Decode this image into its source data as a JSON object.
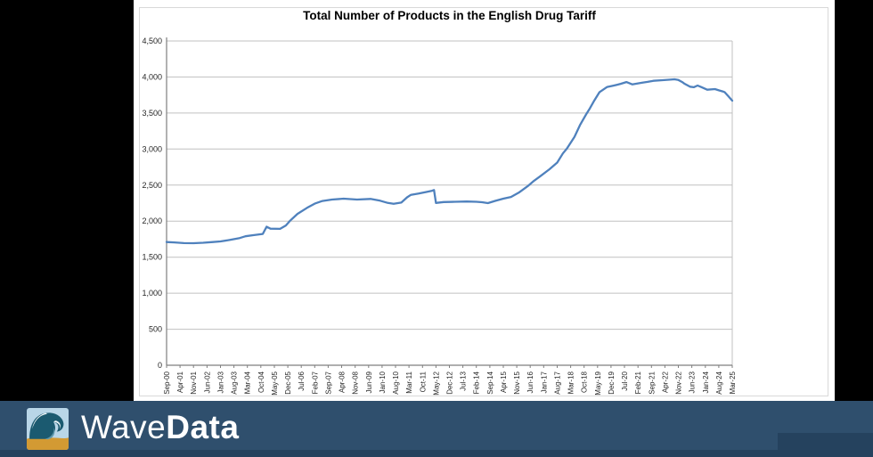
{
  "page": {
    "background": "#000000"
  },
  "chart": {
    "panel_bg": "#ffffff",
    "panel_border_color": "#d9d9d9"
  },
  "chart_data": {
    "type": "line",
    "title": "Total Number of Products in the English Drug Tariff",
    "xlabel": "",
    "ylabel": "",
    "ylim": [
      0,
      4500
    ],
    "y_tick_step": 500,
    "y_tick_labels": [
      "0",
      "500",
      "1,000",
      "1,500",
      "2,000",
      "2,500",
      "3,000",
      "3,500",
      "4,000",
      "4,500"
    ],
    "x_tick_labels": [
      "Sep-00",
      "Apr-01",
      "Nov-01",
      "Jun-02",
      "Jan-03",
      "Aug-03",
      "Mar-04",
      "Oct-04",
      "May-05",
      "Dec-05",
      "Jul-06",
      "Feb-07",
      "Sep-07",
      "Apr-08",
      "Nov-08",
      "Jun-09",
      "Jan-10",
      "Aug-10",
      "Mar-11",
      "Oct-11",
      "May-12",
      "Dec-12",
      "Jul-13",
      "Feb-14",
      "Sep-14",
      "Apr-15",
      "Nov-15",
      "Jun-16",
      "Jan-17",
      "Aug-17",
      "Mar-18",
      "Oct-18",
      "May-19",
      "Dec-19",
      "Jul-20",
      "Feb-21",
      "Sep-21",
      "Apr-22",
      "Nov-22",
      "Jun-23",
      "Jan-24",
      "Aug-24",
      "Mar-25"
    ],
    "x_months_per_tick": 7,
    "x_range": [
      "Sep-00",
      "Mar-25"
    ],
    "grid": "horizontal",
    "legend": "none",
    "line_color": "#4f81bd",
    "gridline_color": "#c0c0c0",
    "axis_color": "#7f7f7f",
    "tick_label_color": "#262626",
    "series": [
      {
        "points_x_unit": "months-since-Sep-00",
        "points": [
          [
            0,
            1710
          ],
          [
            4,
            1705
          ],
          [
            9,
            1695
          ],
          [
            14,
            1694
          ],
          [
            19,
            1700
          ],
          [
            24,
            1710
          ],
          [
            28,
            1718
          ],
          [
            33,
            1740
          ],
          [
            38,
            1766
          ],
          [
            41,
            1790
          ],
          [
            45,
            1805
          ],
          [
            50,
            1822
          ],
          [
            52,
            1922
          ],
          [
            54,
            1895
          ],
          [
            59,
            1893
          ],
          [
            62,
            1940
          ],
          [
            64,
            2000
          ],
          [
            68,
            2100
          ],
          [
            73,
            2185
          ],
          [
            77,
            2242
          ],
          [
            81,
            2280
          ],
          [
            86,
            2300
          ],
          [
            92,
            2312
          ],
          [
            99,
            2300
          ],
          [
            106,
            2308
          ],
          [
            111,
            2283
          ],
          [
            115,
            2252
          ],
          [
            118,
            2240
          ],
          [
            122,
            2258
          ],
          [
            125,
            2330
          ],
          [
            127,
            2365
          ],
          [
            131,
            2382
          ],
          [
            135,
            2405
          ],
          [
            138,
            2422
          ],
          [
            139,
            2432
          ],
          [
            140,
            2252
          ],
          [
            144,
            2265
          ],
          [
            150,
            2268
          ],
          [
            156,
            2272
          ],
          [
            161,
            2268
          ],
          [
            164,
            2262
          ],
          [
            167,
            2250
          ],
          [
            171,
            2282
          ],
          [
            175,
            2312
          ],
          [
            179,
            2335
          ],
          [
            183,
            2395
          ],
          [
            188,
            2492
          ],
          [
            191,
            2560
          ],
          [
            194,
            2618
          ],
          [
            199,
            2720
          ],
          [
            203,
            2812
          ],
          [
            206,
            2940
          ],
          [
            208,
            3005
          ],
          [
            212,
            3170
          ],
          [
            215,
            3340
          ],
          [
            218,
            3480
          ],
          [
            220,
            3565
          ],
          [
            222,
            3660
          ],
          [
            225,
            3790
          ],
          [
            229,
            3862
          ],
          [
            232,
            3880
          ],
          [
            234,
            3892
          ],
          [
            236,
            3905
          ],
          [
            239,
            3930
          ],
          [
            242,
            3898
          ],
          [
            247,
            3920
          ],
          [
            250,
            3932
          ],
          [
            253,
            3948
          ],
          [
            257,
            3955
          ],
          [
            261,
            3962
          ],
          [
            264,
            3968
          ],
          [
            266,
            3958
          ],
          [
            268,
            3930
          ],
          [
            269,
            3910
          ],
          [
            272,
            3866
          ],
          [
            274,
            3858
          ],
          [
            276,
            3882
          ],
          [
            278,
            3860
          ],
          [
            281,
            3824
          ],
          [
            285,
            3833
          ],
          [
            287,
            3815
          ],
          [
            289,
            3800
          ],
          [
            290,
            3790
          ],
          [
            292,
            3732
          ],
          [
            294,
            3672
          ]
        ]
      }
    ]
  },
  "footer": {
    "background": "#2f4f6d",
    "background_dark": "#25425e",
    "text_color": "#ffffff",
    "brand_regular": "Wave",
    "brand_bold": "Data",
    "logo_icon": "wave-logo"
  }
}
